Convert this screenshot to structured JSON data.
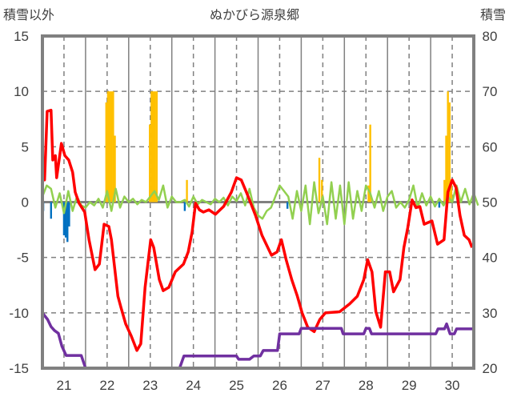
{
  "chart_data": {
    "type": "bar+line",
    "title": "ぬかびら源泉郷",
    "ylabel_left": "積雪以外",
    "ylabel_right": "積雪",
    "xlim": [
      20.5,
      30.5
    ],
    "ylim_left": [
      -15,
      15
    ],
    "ylim_right": [
      20,
      80
    ],
    "left_ticks": [
      "15",
      "10",
      "5",
      "0",
      "-5",
      "-10",
      "-15"
    ],
    "right_ticks": [
      "80",
      "70",
      "60",
      "50",
      "40",
      "30",
      "20"
    ],
    "x_ticks": [
      21,
      22,
      23,
      24,
      25,
      26,
      27,
      28,
      29,
      30
    ],
    "x_tick_labels": [
      "21",
      "22",
      "23",
      "24",
      "25",
      "26",
      "27",
      "28",
      "29",
      "30"
    ],
    "grid": true,
    "colors": {
      "snowfall": "#FFC000",
      "precip_negative": "#0070C0",
      "temperature": "#FF0000",
      "other": "#92D050",
      "snow_depth": "#7030A0",
      "frame": "#808080"
    },
    "bars_positive": [
      [
        21.98,
        9
      ],
      [
        22.02,
        10
      ],
      [
        22.06,
        10
      ],
      [
        22.1,
        10
      ],
      [
        22.14,
        10
      ],
      [
        22.18,
        6
      ],
      [
        22.99,
        7
      ],
      [
        23.03,
        10
      ],
      [
        23.07,
        10
      ],
      [
        23.11,
        10
      ],
      [
        23.15,
        10
      ],
      [
        23.85,
        2
      ],
      [
        26.92,
        4
      ],
      [
        26.98,
        2
      ],
      [
        28.06,
        1.5
      ],
      [
        28.1,
        7
      ],
      [
        29.82,
        2
      ],
      [
        29.86,
        6
      ],
      [
        29.9,
        10
      ],
      [
        29.94,
        9
      ],
      [
        29.98,
        2
      ]
    ],
    "bars_negative": [
      [
        20.52,
        -0.8
      ],
      [
        20.7,
        -1.5
      ],
      [
        21.0,
        -3
      ],
      [
        21.04,
        -3.2
      ],
      [
        21.08,
        -3.6
      ],
      [
        21.12,
        -2.2
      ],
      [
        23.8,
        -0.8
      ],
      [
        26.18,
        -0.6
      ],
      [
        29.7,
        -0.5
      ]
    ],
    "temperature": [
      [
        20.52,
        2.7
      ],
      [
        20.55,
        2.0
      ],
      [
        20.61,
        8.2
      ],
      [
        20.7,
        8.3
      ],
      [
        20.74,
        3.8
      ],
      [
        20.8,
        4.2
      ],
      [
        20.83,
        2.2
      ],
      [
        20.94,
        5.3
      ],
      [
        21.02,
        4.2
      ],
      [
        21.11,
        3.8
      ],
      [
        21.2,
        2.7
      ],
      [
        21.26,
        0.9
      ],
      [
        21.35,
        -0.1
      ],
      [
        21.48,
        -0.9
      ],
      [
        21.58,
        -3.4
      ],
      [
        21.72,
        -6.1
      ],
      [
        21.82,
        -5.6
      ],
      [
        21.93,
        -2.0
      ],
      [
        22.04,
        -2.2
      ],
      [
        22.1,
        -3.4
      ],
      [
        22.25,
        -8.5
      ],
      [
        22.32,
        -9.5
      ],
      [
        22.43,
        -11
      ],
      [
        22.56,
        -12.1
      ],
      [
        22.69,
        -13.4
      ],
      [
        22.78,
        -12.8
      ],
      [
        22.88,
        -7.7
      ],
      [
        23.01,
        -3.4
      ],
      [
        23.08,
        -4.1
      ],
      [
        23.21,
        -7.0
      ],
      [
        23.3,
        -8.0
      ],
      [
        23.43,
        -7.7
      ],
      [
        23.58,
        -6.3
      ],
      [
        23.77,
        -5.6
      ],
      [
        23.88,
        -4.5
      ],
      [
        23.97,
        -2.7
      ],
      [
        24.05,
        -0.1
      ],
      [
        24.14,
        -0.7
      ],
      [
        24.23,
        -0.9
      ],
      [
        24.36,
        -0.7
      ],
      [
        24.51,
        -1.1
      ],
      [
        24.7,
        -0.4
      ],
      [
        24.88,
        0.9
      ],
      [
        25.0,
        2.2
      ],
      [
        25.11,
        2.0
      ],
      [
        25.26,
        0.6
      ],
      [
        25.44,
        -1.2
      ],
      [
        25.59,
        -3.0
      ],
      [
        25.81,
        -4.8
      ],
      [
        25.94,
        -4.5
      ],
      [
        26.04,
        -3.4
      ],
      [
        26.15,
        -5.2
      ],
      [
        26.28,
        -7.0
      ],
      [
        26.41,
        -8.5
      ],
      [
        26.52,
        -10
      ],
      [
        26.65,
        -11.3
      ],
      [
        26.8,
        -11.7
      ],
      [
        26.93,
        -10.6
      ],
      [
        27.06,
        -10.0
      ],
      [
        27.39,
        -9.9
      ],
      [
        27.62,
        -9.2
      ],
      [
        27.8,
        -8.5
      ],
      [
        27.95,
        -7.0
      ],
      [
        28.04,
        -5.2
      ],
      [
        28.14,
        -6.3
      ],
      [
        28.23,
        -9.9
      ],
      [
        28.34,
        -11.3
      ],
      [
        28.45,
        -6.3
      ],
      [
        28.55,
        -6.3
      ],
      [
        28.64,
        -8.1
      ],
      [
        28.79,
        -7.0
      ],
      [
        28.88,
        -4.1
      ],
      [
        28.97,
        -2.3
      ],
      [
        29.07,
        0.2
      ],
      [
        29.16,
        -0.5
      ],
      [
        29.25,
        -0.4
      ],
      [
        29.35,
        -2.0
      ],
      [
        29.53,
        -1.7
      ],
      [
        29.66,
        -3.8
      ],
      [
        29.81,
        -3.4
      ],
      [
        29.9,
        0.9
      ],
      [
        30.0,
        2.0
      ],
      [
        30.09,
        1.3
      ],
      [
        30.18,
        -1.2
      ],
      [
        30.28,
        -3.0
      ],
      [
        30.39,
        -3.4
      ],
      [
        30.46,
        -4.1
      ]
    ],
    "other_start": 20.5,
    "other_step": 0.1,
    "other": [
      0.5,
      1.5,
      1.2,
      -0.5,
      0.8,
      -1,
      1,
      -0.8,
      0.5,
      -0.3,
      -0.5,
      0,
      -0.3,
      0.3,
      -0.5,
      1,
      -0.8,
      1.2,
      -0.5,
      0.5,
      0,
      0.3,
      -0.2,
      0.2,
      0,
      0.5,
      1,
      0.2,
      1.5,
      -0.5,
      0.5,
      0,
      0,
      0.2,
      -0.4,
      0.5,
      -0.2,
      0.2,
      0,
      -0.2,
      0.3,
      0,
      0.4,
      -0.3,
      0.5,
      0.1,
      0.8,
      -0.3,
      1.2,
      -0.5,
      -1.2,
      -1.5,
      -0.8,
      -0.5,
      0.5,
      1.5,
      1,
      0.5,
      -1.5,
      1,
      -0.8,
      1.5,
      -2,
      1.8,
      -1,
      0.5,
      -2,
      1.8,
      -1.5,
      1.5,
      -2,
      1.8,
      -1.5,
      1,
      -0.8,
      1.5,
      0.8,
      -0.5,
      1,
      -0.8,
      0.5,
      1,
      -0.5,
      0,
      -0.5,
      0.2,
      1.5,
      -0.5,
      0.8,
      -0.3,
      0.5,
      -0.4,
      0.3,
      -0.3,
      0.5,
      0,
      1.5,
      0,
      1.2,
      -0.2,
      0.8,
      -0.3
    ],
    "snow_depth_right_axis": [
      [
        20.5,
        30
      ],
      [
        20.55,
        29.5
      ],
      [
        20.62,
        28.8
      ],
      [
        20.7,
        27.5
      ],
      [
        20.78,
        26.8
      ],
      [
        20.87,
        26.3
      ],
      [
        20.95,
        24
      ],
      [
        21.05,
        22.3
      ],
      [
        21.4,
        22.3
      ],
      [
        21.5,
        20
      ],
      [
        23.68,
        20
      ],
      [
        23.78,
        22.2
      ],
      [
        25.0,
        22.2
      ],
      [
        25.05,
        21.6
      ],
      [
        25.3,
        21.6
      ],
      [
        25.4,
        22.2
      ],
      [
        25.55,
        22.2
      ],
      [
        25.62,
        23.2
      ],
      [
        25.95,
        23.2
      ],
      [
        26.0,
        26.2
      ],
      [
        26.45,
        26.2
      ],
      [
        26.5,
        27.2
      ],
      [
        27.43,
        27.2
      ],
      [
        27.47,
        26.2
      ],
      [
        27.95,
        26.2
      ],
      [
        28.0,
        27.2
      ],
      [
        28.08,
        27.2
      ],
      [
        28.13,
        26.2
      ],
      [
        29.62,
        26.2
      ],
      [
        29.67,
        27.1
      ],
      [
        29.82,
        27.1
      ],
      [
        29.87,
        28.0
      ],
      [
        29.95,
        26.2
      ],
      [
        30.05,
        26.2
      ],
      [
        30.1,
        27.1
      ],
      [
        30.5,
        27.1
      ]
    ]
  }
}
